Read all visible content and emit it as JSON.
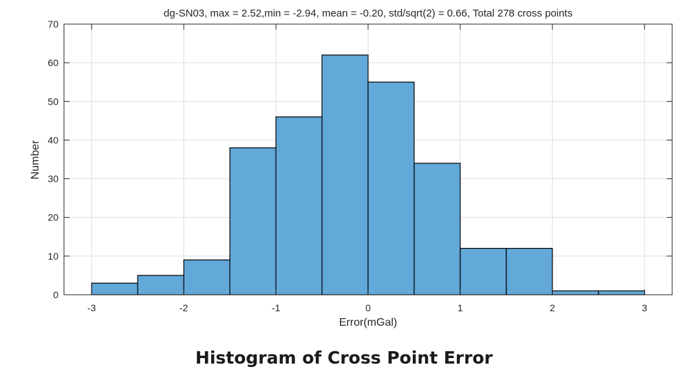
{
  "caption": "Histogram of Cross Point Error",
  "chart_data": {
    "type": "bar",
    "title": "dg-SN03, max = 2.52,min = -2.94, mean = -0.20, std/sqrt(2) = 0.66, Total 278 cross points",
    "xlabel": "Error(mGal)",
    "ylabel": "Number",
    "bin_edges": [
      -3.0,
      -2.5,
      -2.0,
      -1.5,
      -1.0,
      -0.5,
      0.0,
      0.5,
      1.0,
      1.5,
      2.0,
      2.5,
      3.0
    ],
    "values": [
      3,
      5,
      9,
      38,
      46,
      62,
      55,
      34,
      12,
      12,
      1,
      1
    ],
    "xlim": [
      -3.3,
      3.3
    ],
    "ylim": [
      0,
      70
    ],
    "xticks": [
      -3,
      -2,
      -1,
      0,
      1,
      2,
      3
    ],
    "xtick_labels": [
      "-3",
      "-2",
      "-1",
      "0",
      "1",
      "2",
      "3"
    ],
    "yticks": [
      0,
      10,
      20,
      30,
      40,
      50,
      60,
      70
    ],
    "ytick_labels": [
      "0",
      "10",
      "20",
      "30",
      "40",
      "50",
      "60",
      "70"
    ],
    "grid": true,
    "bar_color": "#62a8d8",
    "bar_edge_color": "#000000"
  }
}
